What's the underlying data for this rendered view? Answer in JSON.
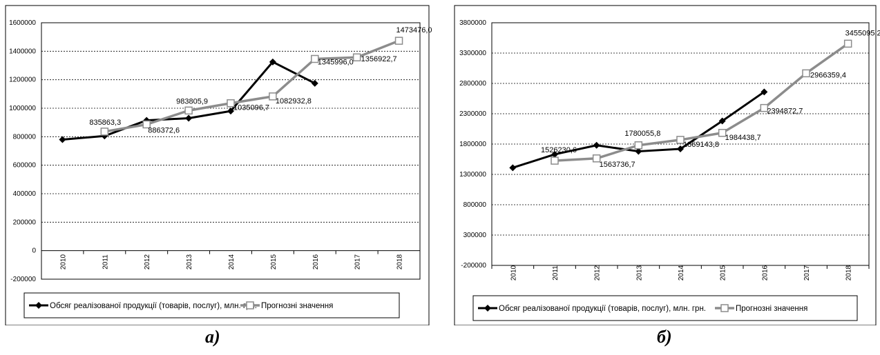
{
  "captions": {
    "a": "а)",
    "b": "б)"
  },
  "colors": {
    "actual": "#000000",
    "forecast": "#8c8c8c",
    "grid": "#000000"
  },
  "chart_data": [
    {
      "type": "line",
      "panel": "а)",
      "x": [
        "2010",
        "2011",
        "2012",
        "2013",
        "2014",
        "2015",
        "2016",
        "2017",
        "2018"
      ],
      "ylim": [
        -200000,
        1600000
      ],
      "yticks": [
        -200000,
        0,
        200000,
        400000,
        600000,
        800000,
        1000000,
        1200000,
        1400000,
        1600000
      ],
      "ytick_labels": [
        "-200000",
        "0",
        "200000",
        "400000",
        "600000",
        "800000",
        "1000000",
        "1200000",
        "1400000",
        "1600000"
      ],
      "grid": true,
      "legend_position": "bottom",
      "series": [
        {
          "name": "Обсяг реалізованої продукції (товарів, послуг), млн. грн.",
          "marker": "diamond",
          "color": "#000000",
          "values": [
            780000,
            805000,
            915000,
            930000,
            980000,
            1325000,
            1175000,
            null,
            null
          ]
        },
        {
          "name": "Прогнозні значення",
          "marker": "square",
          "color": "#8c8c8c",
          "values": [
            null,
            835863.3,
            886372.6,
            983805.9,
            1035096.7,
            1082932.8,
            1345996.0,
            1356922.7,
            1473476.0
          ]
        }
      ],
      "data_labels": [
        {
          "x": "2011",
          "text": "835863,3"
        },
        {
          "x": "2012",
          "text": "886372,6"
        },
        {
          "x": "2013",
          "text": "983805,9"
        },
        {
          "x": "2014",
          "text": "1035096,7"
        },
        {
          "x": "2015",
          "text": "1082932,8"
        },
        {
          "x": "2016",
          "text": "1345996,0"
        },
        {
          "x": "2017",
          "text": "1356922,7"
        },
        {
          "x": "2018",
          "text": "1473476,0"
        }
      ]
    },
    {
      "type": "line",
      "panel": "б)",
      "x": [
        "2010",
        "2011",
        "2012",
        "2013",
        "2014",
        "2015",
        "2016",
        "2017",
        "2018"
      ],
      "ylim": [
        -200000,
        3800000
      ],
      "yticks": [
        -200000,
        300000,
        800000,
        1300000,
        1800000,
        2300000,
        2800000,
        3300000,
        3800000
      ],
      "ytick_labels": [
        "-200000",
        "300000",
        "800000",
        "1300000",
        "1800000",
        "2300000",
        "2800000",
        "3300000",
        "3800000"
      ],
      "grid": true,
      "legend_position": "bottom",
      "series": [
        {
          "name": "Обсяг реалізованої продукції (товарів, послуг), млн. грн.",
          "marker": "diamond",
          "color": "#000000",
          "values": [
            1410000,
            1630000,
            1780000,
            1680000,
            1720000,
            2180000,
            2660000,
            null,
            null
          ]
        },
        {
          "name": "Прогнозні значення",
          "marker": "square",
          "color": "#8c8c8c",
          "values": [
            null,
            1526230.6,
            1563736.7,
            1780055.8,
            1869143.8,
            1984438.7,
            2394872.7,
            2966359.4,
            3455095.2
          ]
        }
      ],
      "data_labels": [
        {
          "x": "2011",
          "text": "1526230,6"
        },
        {
          "x": "2012",
          "text": "1563736,7"
        },
        {
          "x": "2013",
          "text": "1780055,8"
        },
        {
          "x": "2014",
          "text": "1869143,8"
        },
        {
          "x": "2015",
          "text": "1984438,7"
        },
        {
          "x": "2016",
          "text": "2394872,7"
        },
        {
          "x": "2017",
          "text": "2966359,4"
        },
        {
          "x": "2018",
          "text": "3455095,2"
        }
      ]
    }
  ]
}
